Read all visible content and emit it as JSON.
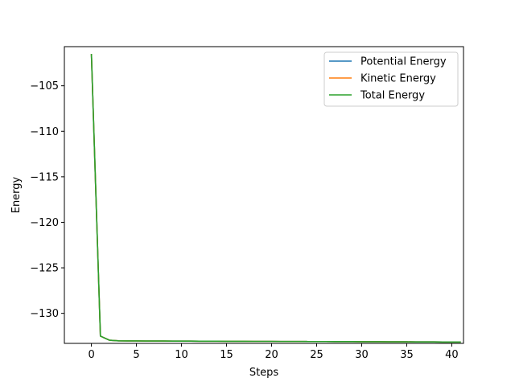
{
  "chart_data": {
    "type": "line",
    "title": "",
    "xlabel": "Steps",
    "ylabel": "Energy",
    "xlim": [
      -3,
      41.3
    ],
    "ylim": [
      -133.3,
      -100.7
    ],
    "xticks": [
      0,
      5,
      10,
      15,
      20,
      25,
      30,
      35,
      40
    ],
    "yticks": [
      -105,
      -110,
      -115,
      -120,
      -125,
      -130
    ],
    "grid": false,
    "legend_position": "top-right",
    "x": [
      0,
      1,
      2,
      3,
      4,
      5,
      6,
      7,
      8,
      9,
      10,
      11,
      12,
      13,
      14,
      15,
      16,
      17,
      18,
      19,
      20,
      21,
      22,
      23,
      24,
      25,
      26,
      27,
      28,
      29,
      30,
      31,
      32,
      33,
      34,
      35,
      36,
      37,
      38,
      39,
      40,
      41
    ],
    "series": [
      {
        "name": "Potential Energy",
        "color": "#1f77b4",
        "values": [
          -101.5,
          -132.5,
          -132.95,
          -133.02,
          -133.03,
          -133.03,
          -133.04,
          -133.04,
          -133.04,
          -133.05,
          -133.05,
          -133.05,
          -133.06,
          -133.06,
          -133.06,
          -133.07,
          -133.07,
          -133.07,
          -133.08,
          -133.08,
          -133.08,
          -133.09,
          -133.09,
          -133.09,
          -133.1,
          -133.1,
          -133.1,
          -133.11,
          -133.11,
          -133.11,
          -133.12,
          -133.12,
          -133.12,
          -133.13,
          -133.13,
          -133.13,
          -133.14,
          -133.14,
          -133.14,
          -133.15,
          -133.15,
          -133.15
        ]
      },
      {
        "name": "Kinetic Energy",
        "color": "#ff7f0e",
        "values": [
          -101.5,
          -132.5,
          -132.95,
          -133.02,
          -133.03,
          -133.03,
          -133.04,
          -133.04,
          -133.04,
          -133.05,
          -133.05,
          -133.05,
          -133.06,
          -133.06,
          -133.06,
          -133.07,
          -133.07,
          -133.07,
          -133.08,
          -133.08,
          -133.08,
          -133.09,
          -133.09,
          -133.09,
          -133.1,
          -133.1,
          -133.1,
          -133.11,
          -133.11,
          -133.11,
          -133.12,
          -133.12,
          -133.12,
          -133.13,
          -133.13,
          -133.13,
          -133.14,
          -133.14,
          -133.14,
          -133.15,
          -133.15,
          -133.15
        ]
      },
      {
        "name": "Total Energy",
        "color": "#2ca02c",
        "values": [
          -101.5,
          -132.5,
          -132.95,
          -133.02,
          -133.03,
          -133.03,
          -133.04,
          -133.04,
          -133.04,
          -133.05,
          -133.05,
          -133.05,
          -133.06,
          -133.06,
          -133.06,
          -133.07,
          -133.07,
          -133.07,
          -133.08,
          -133.08,
          -133.08,
          -133.09,
          -133.09,
          -133.09,
          -133.1,
          -133.1,
          -133.1,
          -133.11,
          -133.11,
          -133.11,
          -133.12,
          -133.12,
          -133.12,
          -133.13,
          -133.13,
          -133.13,
          -133.14,
          -133.14,
          -133.14,
          -133.15,
          -133.15,
          -133.15
        ]
      }
    ]
  }
}
